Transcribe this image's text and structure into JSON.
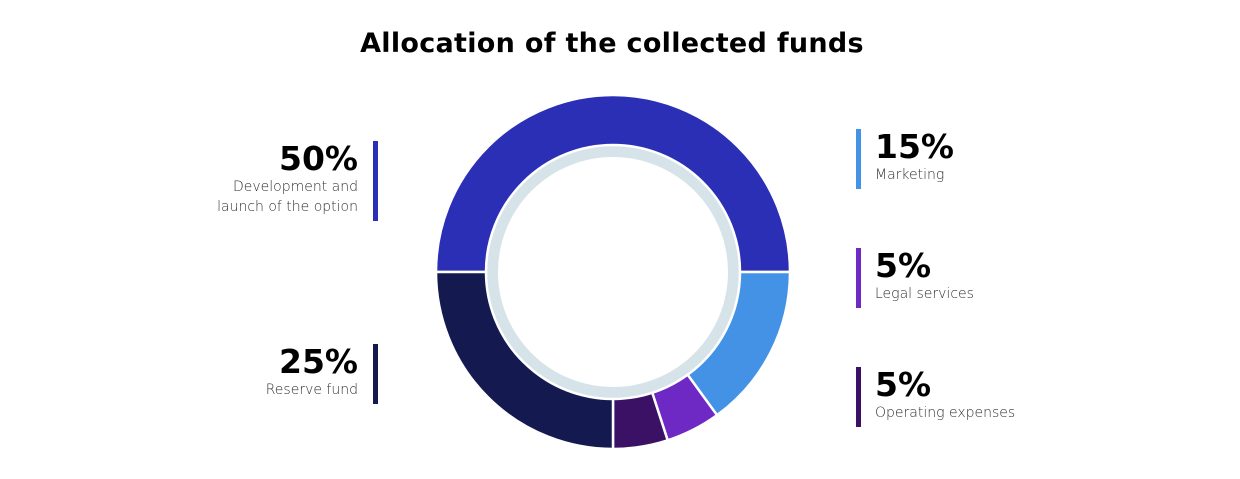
{
  "chart_data": {
    "type": "donut",
    "title": "Allocation of the collected funds",
    "categories": [
      "Development and launch of the option",
      "Marketing",
      "Legal services",
      "Operating expenses",
      "Reserve fund"
    ],
    "values": [
      50,
      15,
      5,
      5,
      25
    ],
    "value_labels": [
      "50%",
      "15%",
      "5%",
      "5%",
      "25%"
    ],
    "colors": [
      "#2a2fb5",
      "#4492e6",
      "#6e29c4",
      "#3b1165",
      "#141a4f"
    ]
  }
}
